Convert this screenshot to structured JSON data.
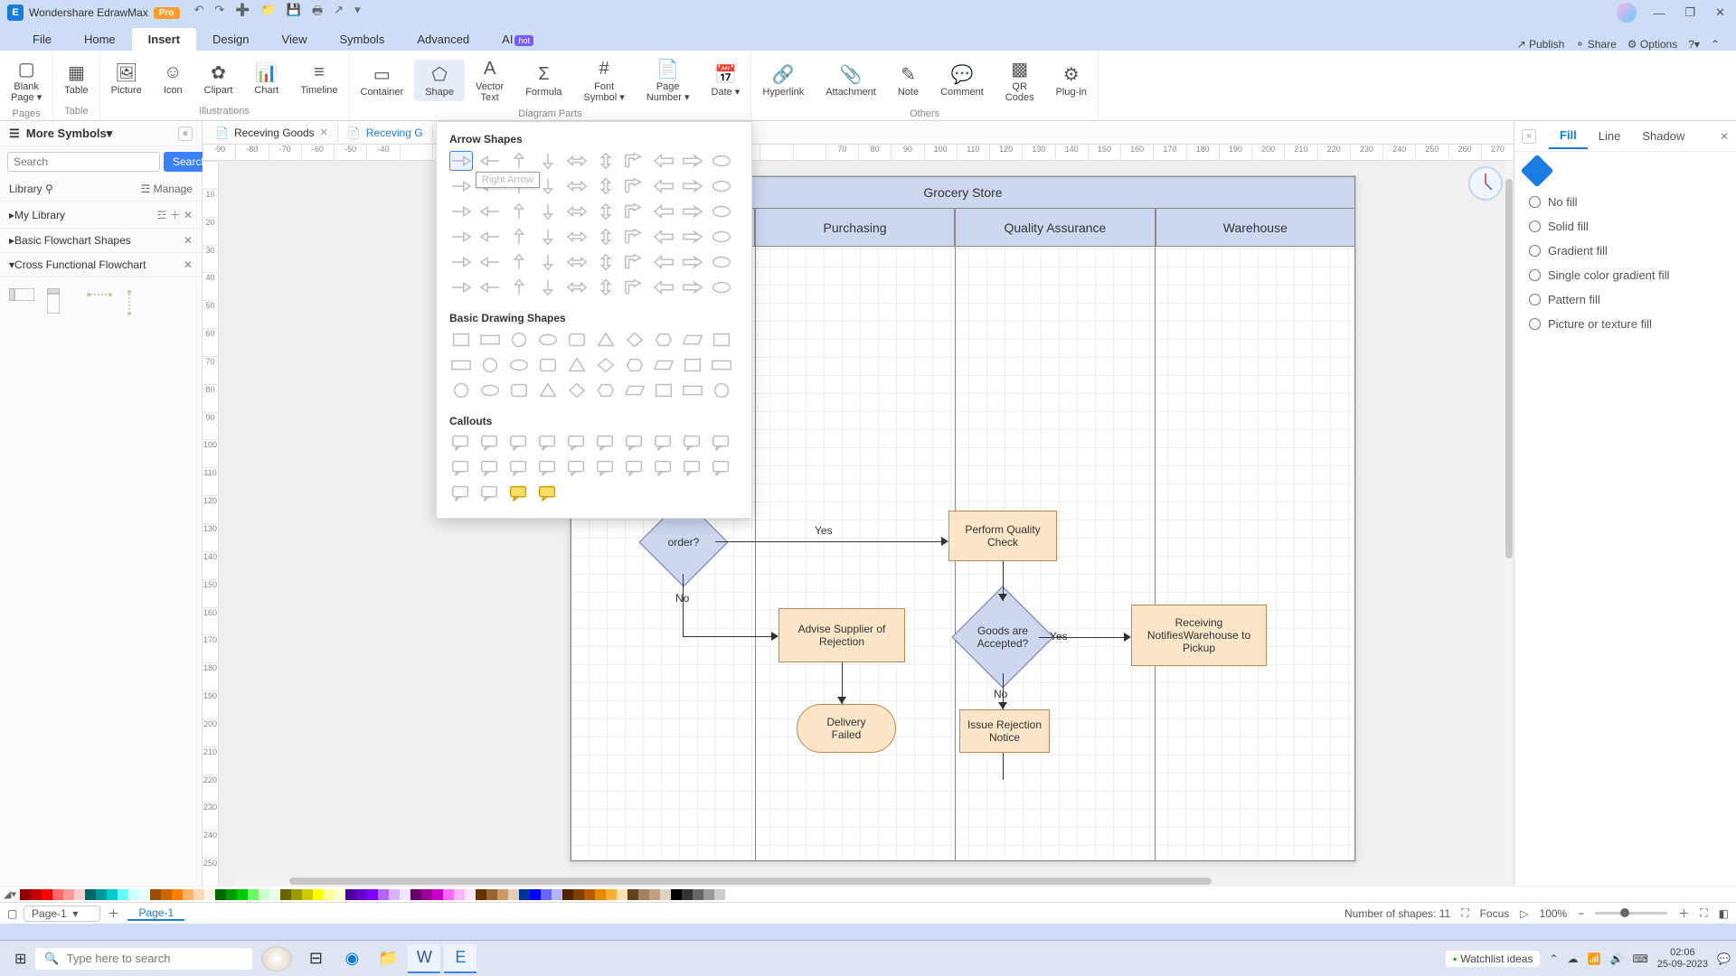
{
  "app": {
    "title": "Wondershare EdrawMax",
    "badge": "Pro"
  },
  "menus": [
    "File",
    "Home",
    "Insert",
    "Design",
    "View",
    "Symbols",
    "Advanced",
    "AI"
  ],
  "active_menu": "Insert",
  "top_right": {
    "publish": "Publish",
    "share": "Share",
    "options": "Options"
  },
  "ribbon": {
    "groups": [
      {
        "label": "Pages",
        "items": [
          {
            "label": "Blank\nPage",
            "icon": "▢",
            "dd": true
          }
        ]
      },
      {
        "label": "Table",
        "items": [
          {
            "label": "Table",
            "icon": "▦"
          }
        ]
      },
      {
        "label": "Illustrations",
        "items": [
          {
            "label": "Picture",
            "icon": "🖼"
          },
          {
            "label": "Icon",
            "icon": "☺"
          },
          {
            "label": "Clipart",
            "icon": "✿"
          },
          {
            "label": "Chart",
            "icon": "📊"
          },
          {
            "label": "Timeline",
            "icon": "≡"
          }
        ]
      },
      {
        "label": "Diagram Parts",
        "items": [
          {
            "label": "Container",
            "icon": "▭"
          },
          {
            "label": "Shape",
            "icon": "⬠",
            "active": true
          },
          {
            "label": "Vector\nText",
            "icon": "A"
          },
          {
            "label": "Formula",
            "icon": "Σ"
          },
          {
            "label": "Font\nSymbol",
            "icon": "#",
            "dd": true
          },
          {
            "label": "Page\nNumber",
            "icon": "📄",
            "dd": true
          },
          {
            "label": "Date",
            "icon": "📅",
            "dd": true
          }
        ]
      },
      {
        "label": "Others",
        "items": [
          {
            "label": "Hyperlink",
            "icon": "🔗"
          },
          {
            "label": "Attachment",
            "icon": "📎"
          },
          {
            "label": "Note",
            "icon": "✎"
          },
          {
            "label": "Comment",
            "icon": "💬"
          },
          {
            "label": "QR\nCodes",
            "icon": "▩"
          },
          {
            "label": "Plug-in",
            "icon": "⚙"
          }
        ]
      }
    ]
  },
  "left": {
    "header": "More Symbols",
    "search_ph": "Search",
    "search_btn": "Search",
    "library": "Library",
    "manage": "Manage",
    "mylib": "My Library",
    "acc1": "Basic Flowchart Shapes",
    "acc2": "Cross Functional Flowchart"
  },
  "doc_tabs": [
    {
      "label": "Receving Goods",
      "active": false
    },
    {
      "label": "Receving G",
      "active": true
    }
  ],
  "ruler_h": [
    "-90",
    "-80",
    "-70",
    "-60",
    "-50",
    "-40",
    "",
    "",
    "",
    "",
    "",
    "",
    "",
    "",
    "",
    "",
    "",
    "",
    "",
    "70",
    "80",
    "90",
    "100",
    "110",
    "120",
    "130",
    "140",
    "150",
    "160",
    "170",
    "180",
    "190",
    "200",
    "210",
    "220",
    "230",
    "240",
    "250",
    "260",
    "270"
  ],
  "ruler_v": [
    "",
    "10",
    "20",
    "30",
    "40",
    "50",
    "60",
    "70",
    "80",
    "90",
    "100",
    "110",
    "120",
    "130",
    "140",
    "150",
    "160",
    "170",
    "180",
    "190",
    "200",
    "210",
    "220",
    "230",
    "240",
    "250"
  ],
  "dropdown": {
    "s1": "Arrow Shapes",
    "s2": "Basic Drawing Shapes",
    "s3": "Callouts",
    "tooltip": "Right Arrow"
  },
  "flowchart": {
    "title": "Grocery Store",
    "cols": [
      "",
      "Purchasing",
      "Quality Assurance",
      "Warehouse"
    ],
    "order_q": "order?",
    "qc": "Perform Quality\nCheck",
    "advise": "Advise Supplier of\nRejection",
    "goods_q": "Goods are\nAccepted?",
    "notify": "Receiving\nNotifiesWarehouse to\nPickup",
    "delivery": "Delivery\nFailed",
    "issue": "Issue Rejection\nNotice",
    "yes": "Yes",
    "no": "No"
  },
  "right": {
    "tabs": [
      "Fill",
      "Line",
      "Shadow"
    ],
    "opts": [
      "No fill",
      "Solid fill",
      "Gradient fill",
      "Single color gradient fill",
      "Pattern fill",
      "Picture or texture fill"
    ]
  },
  "colorbar": [
    "#920000",
    "#c00000",
    "#ff0000",
    "#ff6666",
    "#ff9999",
    "#ffcccc",
    "#006666",
    "#009999",
    "#00cccc",
    "#66ffff",
    "#ccffff",
    "#e6ffff",
    "#994c00",
    "#cc6600",
    "#ff8000",
    "#ffb366",
    "#ffd9b3",
    "#fff2e6",
    "#006600",
    "#009900",
    "#00cc00",
    "#66ff66",
    "#ccffcc",
    "#e6ffe6",
    "#666600",
    "#999900",
    "#cccc00",
    "#ffff00",
    "#ffff99",
    "#ffffcc",
    "#4c0099",
    "#6600cc",
    "#8000ff",
    "#b366ff",
    "#d9b3ff",
    "#f2e6ff",
    "#660066",
    "#990099",
    "#cc00cc",
    "#ff66ff",
    "#ffb3ff",
    "#ffe6ff",
    "#663300",
    "#996633",
    "#cc9966",
    "#e6ccb3",
    "#003399",
    "#0000ff",
    "#6666ff",
    "#b3b3ff",
    "#4d2600",
    "#804000",
    "#b35900",
    "#e68a00",
    "#ffad33",
    "#ffe0b3",
    "#604020",
    "#a08060",
    "#c0a080",
    "#e0d0c0",
    "#000000",
    "#333333",
    "#666666",
    "#999999",
    "#cccccc",
    "#ffffff"
  ],
  "status": {
    "shapes": "Number of shapes: 11",
    "focus": "Focus",
    "zoom": "100%",
    "page_sel": "Page-1",
    "page_tab": "Page-1"
  },
  "taskbar": {
    "search": "Type here to search",
    "watchlist": "Watchlist ideas",
    "time": "02:06",
    "date": "25-09-2023"
  }
}
